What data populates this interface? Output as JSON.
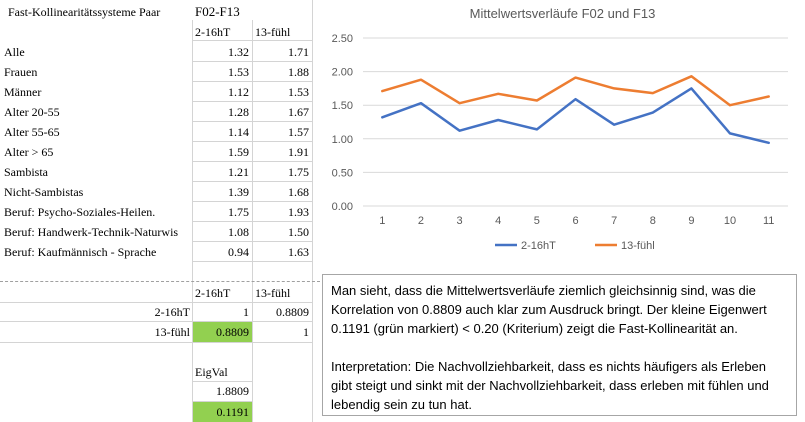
{
  "table": {
    "title": "Fast-Kollinearitätssysteme Paar",
    "pair": "F02-F13",
    "col1": "2-16hT",
    "col2": "13-fühl",
    "rows": [
      {
        "label": "Alle",
        "v1": "1.32",
        "v2": "1.71"
      },
      {
        "label": "Frauen",
        "v1": "1.53",
        "v2": "1.88"
      },
      {
        "label": "Männer",
        "v1": "1.12",
        "v2": "1.53"
      },
      {
        "label": "Alter 20-55",
        "v1": "1.28",
        "v2": "1.67"
      },
      {
        "label": "Alter 55-65",
        "v1": "1.14",
        "v2": "1.57"
      },
      {
        "label": "Alter > 65",
        "v1": "1.59",
        "v2": "1.91"
      },
      {
        "label": "Sambista",
        "v1": "1.21",
        "v2": "1.75"
      },
      {
        "label": "Nicht-Sambistas",
        "v1": "1.39",
        "v2": "1.68"
      },
      {
        "label": "Beruf: Psycho-Soziales-Heilen.",
        "v1": "1.75",
        "v2": "1.93"
      },
      {
        "label": "Beruf: Handwerk-Technik-Naturwis",
        "v1": "1.08",
        "v2": "1.50"
      },
      {
        "label": "Beruf: Kaufmännisch - Sprache",
        "v1": "0.94",
        "v2": "1.63"
      }
    ]
  },
  "correlation": {
    "col1": "2-16hT",
    "col2": "13-fühl",
    "row1_label": "2-16hT",
    "row1_v1": "1",
    "row1_v2": "0.8809",
    "row2_label": "13-fühl",
    "row2_v1": "0.8809",
    "row2_v2": "1"
  },
  "eigval": {
    "label": "EigVal",
    "v1": "1.8809",
    "v2": "0.1191"
  },
  "colors": {
    "series1": "#4472c4",
    "series2": "#ed7d31",
    "highlight": "#92d050"
  },
  "chart_data": {
    "type": "line",
    "title": "Mittelwertsverläufe F02 und F13",
    "x": [
      1,
      2,
      3,
      4,
      5,
      6,
      7,
      8,
      9,
      10,
      11
    ],
    "series": [
      {
        "name": "2-16hT",
        "values": [
          1.32,
          1.53,
          1.12,
          1.28,
          1.14,
          1.59,
          1.21,
          1.39,
          1.75,
          1.08,
          0.94
        ]
      },
      {
        "name": "13-fühl",
        "values": [
          1.71,
          1.88,
          1.53,
          1.67,
          1.57,
          1.91,
          1.75,
          1.68,
          1.93,
          1.5,
          1.63
        ]
      }
    ],
    "yticks": [
      "0.00",
      "0.50",
      "1.00",
      "1.50",
      "2.00",
      "2.50"
    ],
    "ylim": [
      0,
      2.5
    ],
    "grid": true,
    "legend": "bottom"
  },
  "textbox": {
    "p1": "Man sieht, dass die Mittelwertsverläufe ziemlich gleichsinnig sind, was die Korrelation von 0.8809 auch klar zum Ausdruck bringt. Der kleine Eigenwert 0.1191 (grün markiert) < 0.20 (Kriterium) zeigt die Fast-Kollinearität an.",
    "p2": "Interpretation: Die Nachvollziehbarkeit, dass es nichts häufigers als Erleben gibt steigt und sinkt mit der Nachvollziehbarkeit, dass erleben mit fühlen und lebendig sein zu tun hat."
  }
}
